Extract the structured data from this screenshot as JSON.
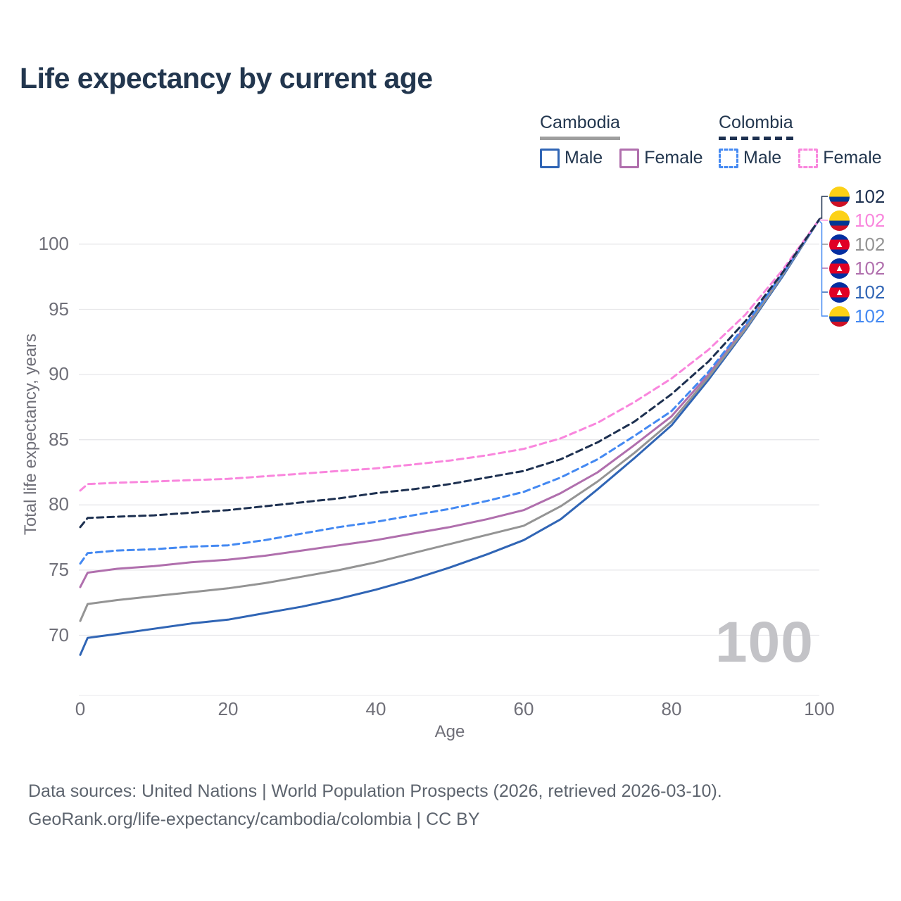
{
  "title": "Life expectancy by current age",
  "legend": {
    "groups": [
      {
        "name": "Cambodia",
        "line_style": "solid",
        "underline_color": "#9e9e9e",
        "items": [
          {
            "label": "Male",
            "color": "#3065b5"
          },
          {
            "label": "Female",
            "color": "#b06fad"
          }
        ]
      },
      {
        "name": "Colombia",
        "line_style": "dashed",
        "underline_color": "#1d3050",
        "items": [
          {
            "label": "Male",
            "color": "#4489f2"
          },
          {
            "label": "Female",
            "color": "#f986dd"
          }
        ]
      }
    ]
  },
  "chart_data": {
    "type": "line",
    "title": "Life expectancy by current age",
    "xlabel": "Age",
    "ylabel": "Total life expectancy, years",
    "x_ticks": [
      0,
      20,
      40,
      60,
      80,
      100
    ],
    "y_ticks": [
      70,
      75,
      80,
      85,
      90,
      95,
      100
    ],
    "xlim": [
      0,
      100
    ],
    "ylim": [
      67,
      103
    ],
    "grid": "horizontal-only",
    "legend_position": "top-right",
    "x": [
      0,
      1,
      5,
      10,
      15,
      20,
      25,
      30,
      35,
      40,
      45,
      50,
      55,
      60,
      65,
      70,
      75,
      80,
      85,
      90,
      95,
      100
    ],
    "series": [
      {
        "name": "Cambodia Male",
        "country": "Cambodia",
        "sex": "Male",
        "color": "#3065b5",
        "dashed": false,
        "values": [
          68.5,
          69.8,
          70.1,
          70.5,
          70.9,
          71.2,
          71.7,
          72.2,
          72.8,
          73.5,
          74.3,
          75.2,
          76.2,
          77.3,
          78.9,
          81.2,
          83.6,
          86.1,
          89.6,
          93.4,
          97.5,
          101.9
        ]
      },
      {
        "name": "Cambodia Female",
        "country": "Cambodia",
        "sex": "Female",
        "color": "#b06fad",
        "dashed": false,
        "values": [
          73.7,
          74.8,
          75.1,
          75.3,
          75.6,
          75.8,
          76.1,
          76.5,
          76.9,
          77.3,
          77.8,
          78.3,
          78.9,
          79.6,
          80.9,
          82.5,
          84.6,
          86.8,
          90.0,
          93.7,
          97.7,
          101.9
        ]
      },
      {
        "name": "Cambodia Both sexes",
        "country": "Cambodia",
        "sex": "Both sexes",
        "color": "#949494",
        "dashed": false,
        "values": [
          71.1,
          72.4,
          72.7,
          73.0,
          73.3,
          73.6,
          74.0,
          74.5,
          75.0,
          75.6,
          76.3,
          77.0,
          77.7,
          78.4,
          79.9,
          81.8,
          84.0,
          86.4,
          89.8,
          93.5,
          97.6,
          101.9
        ]
      },
      {
        "name": "Colombia Male",
        "country": "Colombia",
        "sex": "Male",
        "color": "#4489f2",
        "dashed": true,
        "values": [
          75.5,
          76.3,
          76.5,
          76.6,
          76.8,
          76.9,
          77.3,
          77.8,
          78.3,
          78.7,
          79.2,
          79.7,
          80.3,
          81.0,
          82.1,
          83.5,
          85.3,
          87.2,
          90.2,
          93.8,
          97.7,
          101.9
        ]
      },
      {
        "name": "Colombia Female",
        "country": "Colombia",
        "sex": "Female",
        "color": "#f986dd",
        "dashed": true,
        "values": [
          81.1,
          81.6,
          81.7,
          81.8,
          81.9,
          82.0,
          82.2,
          82.4,
          82.6,
          82.8,
          83.1,
          83.4,
          83.8,
          84.3,
          85.1,
          86.3,
          87.9,
          89.7,
          91.9,
          94.6,
          98.0,
          101.9
        ]
      },
      {
        "name": "Colombia Both sexes",
        "country": "Colombia",
        "sex": "Both sexes",
        "color": "#1d3050",
        "dashed": true,
        "values": [
          78.3,
          79.0,
          79.1,
          79.2,
          79.4,
          79.6,
          79.9,
          80.2,
          80.5,
          80.9,
          81.2,
          81.6,
          82.1,
          82.6,
          83.5,
          84.8,
          86.4,
          88.5,
          91.0,
          94.1,
          97.8,
          101.9
        ]
      }
    ]
  },
  "end_labels": [
    {
      "flag": "colombia",
      "series": "Colombia Both sexes",
      "color": "#1d3050",
      "value": "102"
    },
    {
      "flag": "colombia",
      "series": "Colombia Female",
      "color": "#f986dd",
      "value": "102"
    },
    {
      "flag": "cambodia",
      "series": "Cambodia Both sexes",
      "color": "#949494",
      "value": "102"
    },
    {
      "flag": "cambodia",
      "series": "Cambodia Female",
      "color": "#b06fad",
      "value": "102"
    },
    {
      "flag": "cambodia",
      "series": "Cambodia Male",
      "color": "#3065b5",
      "value": "102"
    },
    {
      "flag": "colombia",
      "series": "Colombia Male",
      "color": "#4489f2",
      "value": "102"
    }
  ],
  "watermark": "100",
  "footer": {
    "line1": "Data sources: United Nations | World Population Prospects (2026, retrieved 2026-03-10).",
    "line2": "GeoRank.org/life-expectancy/cambodia/colombia | CC BY"
  },
  "colors": {
    "title_text": "#22364e",
    "axis_text": "#6f6f78",
    "grid": "#e7e7ea",
    "baseline": "#ececef",
    "watermark": "#c3c3c7",
    "footer_text": "#5d646e"
  }
}
